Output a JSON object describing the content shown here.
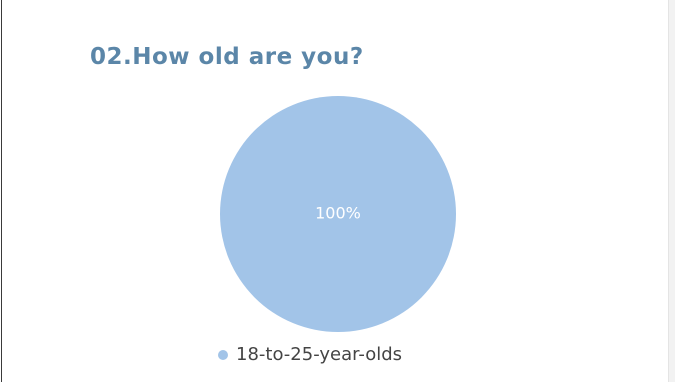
{
  "page": {
    "title": "02.How old are you?"
  },
  "colors": {
    "title": "#5b86a8",
    "slice_1": "#a2c4e8",
    "data_label": "#ffffff"
  },
  "chart_data": {
    "type": "pie",
    "title": "02.How old are you?",
    "categories": [
      "18-to-25-year-olds"
    ],
    "values": [
      100
    ],
    "data_labels": [
      "100%"
    ],
    "legend": {
      "position": "bottom",
      "entries": [
        "18-to-25-year-olds"
      ]
    }
  }
}
